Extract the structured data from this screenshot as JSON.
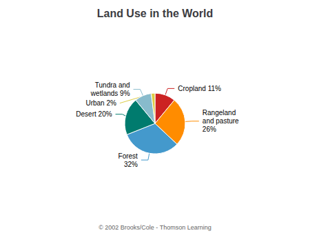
{
  "chart_data": {
    "type": "pie",
    "title": "Land Use in the World",
    "categories": [
      "Cropland 11%",
      "Rangeland\nand pasture\n26%",
      "Forest\n32%",
      "Desert 20%",
      "Tundra and\nwetlands 9%",
      "Urban 2%"
    ],
    "values": [
      11,
      26,
      32,
      20,
      9,
      2
    ],
    "colors": [
      "#CC2222",
      "#FF8C00",
      "#4499CC",
      "#007B6E",
      "#88BBCC",
      "#DDCC44"
    ],
    "annotations": [
      "© 2002 Brooks/Cole - Thomson Learning"
    ]
  }
}
